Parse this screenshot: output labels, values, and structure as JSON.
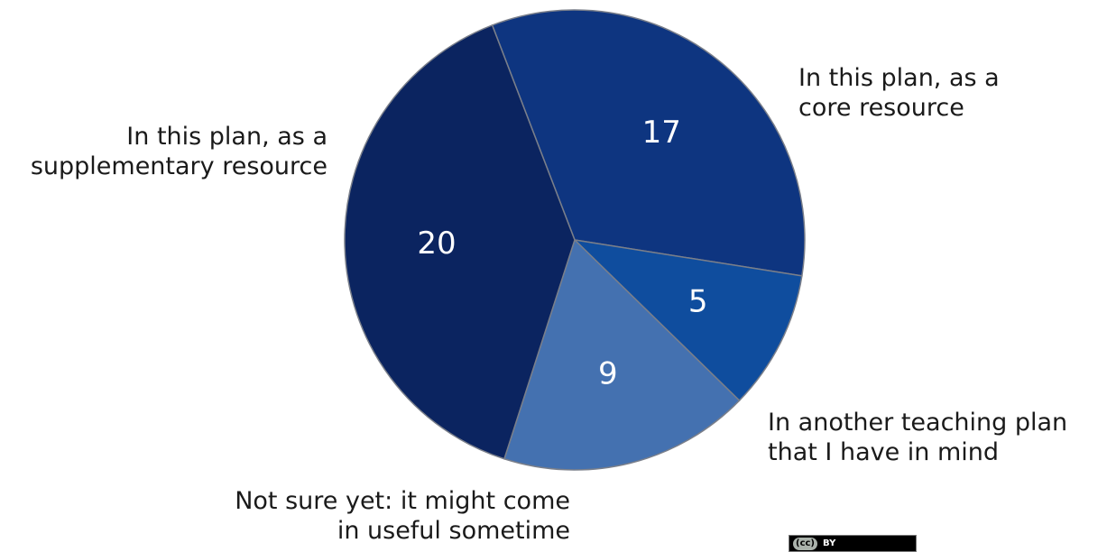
{
  "chart_data": {
    "type": "pie",
    "title": "",
    "slices": [
      {
        "label": "In this plan, as a\ncore resource",
        "value": 17,
        "color": "#0e3580"
      },
      {
        "label": "In another teaching plan\nthat I have in mind",
        "value": 5,
        "color": "#0f4d9e"
      },
      {
        "label": "Not sure yet: it might come\nin useful sometime",
        "value": 9,
        "color": "#4471b0"
      },
      {
        "label": "In this plan, as a\nsupplementary resource",
        "value": 20,
        "color": "#0b2460"
      }
    ],
    "value_label_color": "#ffffff",
    "slice_border_color": "#7a7f8a"
  },
  "license_badge": {
    "cc": "(cc)",
    "by": "BY"
  }
}
